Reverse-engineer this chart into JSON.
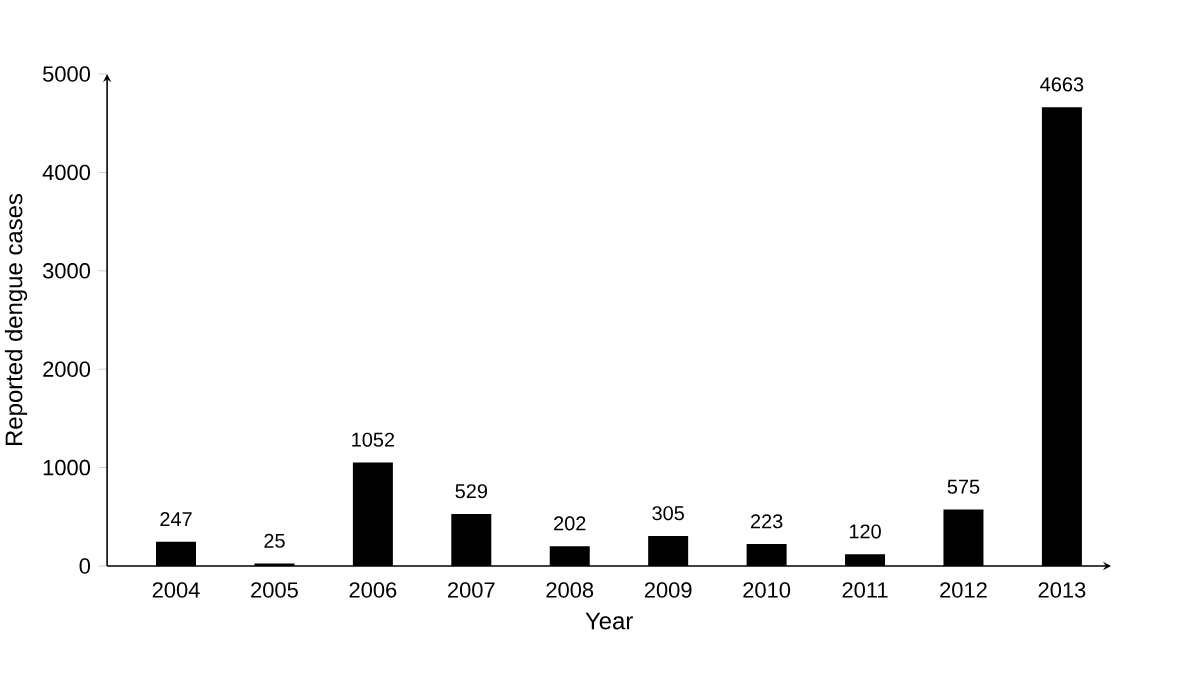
{
  "chart_data": {
    "type": "bar",
    "xlabel": "Year",
    "ylabel": "Reported dengue cases",
    "categories": [
      "2004",
      "2005",
      "2006",
      "2007",
      "2008",
      "2009",
      "2010",
      "2011",
      "2012",
      "2013"
    ],
    "values": [
      247,
      25,
      1052,
      529,
      202,
      305,
      223,
      120,
      575,
      4663
    ],
    "color": "#000000",
    "ylim": [
      0,
      5000
    ],
    "yticks": [
      0,
      1000,
      2000,
      3000,
      4000,
      5000
    ],
    "data_labels": true
  }
}
